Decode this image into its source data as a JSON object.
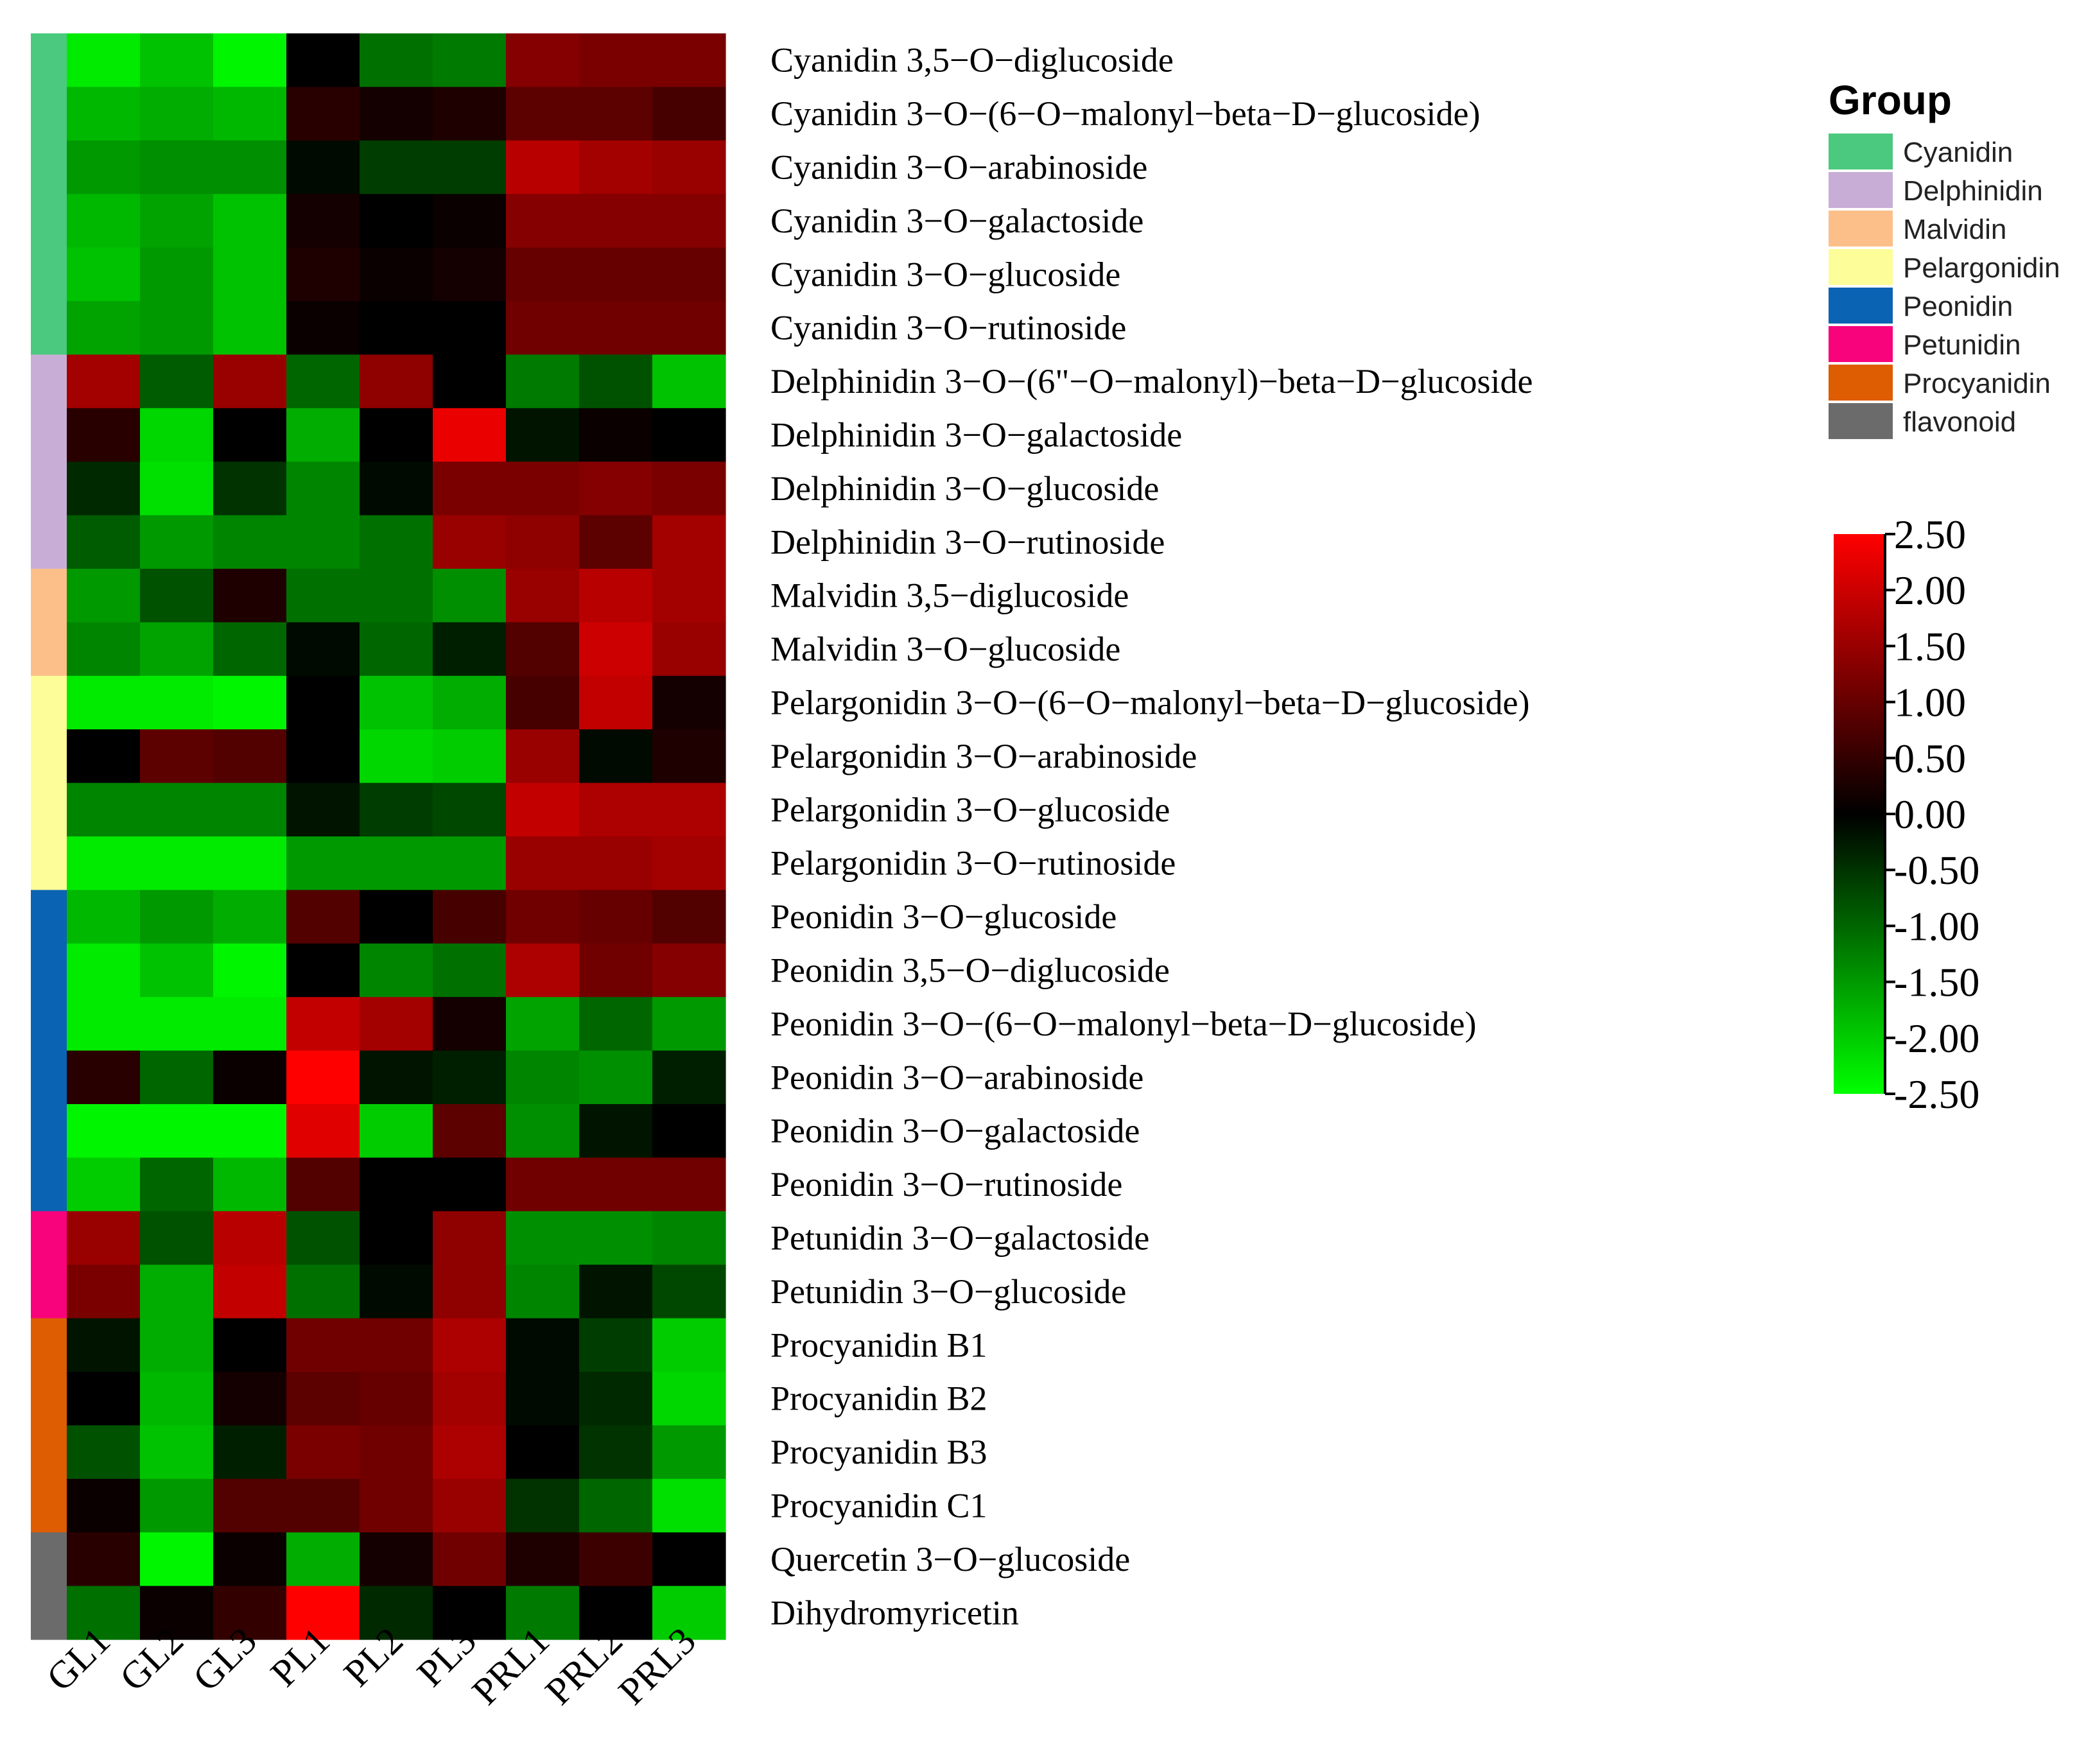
{
  "chart_data": {
    "type": "heatmap",
    "columns": [
      "GL1",
      "GL2",
      "GL3",
      "PL1",
      "PL2",
      "PL3",
      "PRL1",
      "PRL2",
      "PRL3"
    ],
    "rows": [
      {
        "label": "Cyanidin 3,5−O−diglucoside",
        "group": "Cyanidin",
        "values": [
          -2.3,
          -1.9,
          -2.4,
          0.0,
          -1.1,
          -1.2,
          1.3,
          1.2,
          1.2
        ]
      },
      {
        "label": "Cyanidin 3−O−(6−O−malonyl−beta−D−glucoside)",
        "group": "Cyanidin",
        "values": [
          -1.8,
          -1.7,
          -1.8,
          0.4,
          0.2,
          0.3,
          0.9,
          0.9,
          0.7
        ]
      },
      {
        "label": "Cyanidin 3−O−arabinoside",
        "group": "Cyanidin",
        "values": [
          -1.5,
          -1.4,
          -1.4,
          -0.1,
          -0.6,
          -0.6,
          1.8,
          1.6,
          1.5
        ]
      },
      {
        "label": "Cyanidin 3−O−galactoside",
        "group": "Cyanidin",
        "values": [
          -1.8,
          -1.6,
          -1.9,
          0.2,
          0.0,
          0.1,
          1.3,
          1.3,
          1.3
        ]
      },
      {
        "label": "Cyanidin 3−O−glucoside",
        "group": "Cyanidin",
        "values": [
          -1.9,
          -1.5,
          -1.9,
          0.3,
          0.1,
          0.2,
          1.0,
          1.0,
          1.0
        ]
      },
      {
        "label": "Cyanidin 3−O−rutinoside",
        "group": "Cyanidin",
        "values": [
          -1.6,
          -1.5,
          -1.9,
          0.1,
          0.0,
          0.0,
          1.1,
          1.1,
          1.1
        ]
      },
      {
        "label": "Delphinidin 3−O−(6\"−O−malonyl)−beta−D−glucoside",
        "group": "Delphinidin",
        "values": [
          1.6,
          -0.9,
          1.5,
          -1.0,
          1.4,
          0.0,
          -1.2,
          -0.8,
          -1.9
        ]
      },
      {
        "label": "Delphinidin 3−O−galactoside",
        "group": "Delphinidin",
        "values": [
          0.4,
          -2.1,
          0.0,
          -1.7,
          0.0,
          2.3,
          -0.2,
          0.1,
          0.0
        ]
      },
      {
        "label": "Delphinidin 3−O−glucoside",
        "group": "Delphinidin",
        "values": [
          -0.4,
          -2.2,
          -0.5,
          -1.3,
          -0.1,
          1.2,
          1.2,
          1.3,
          1.2
        ]
      },
      {
        "label": "Delphinidin 3−O−rutinoside",
        "group": "Delphinidin",
        "values": [
          -0.9,
          -1.5,
          -1.3,
          -1.3,
          -1.1,
          1.5,
          1.4,
          0.9,
          1.6
        ]
      },
      {
        "label": "Malvidin 3,5−diglucoside",
        "group": "Malvidin",
        "values": [
          -1.5,
          -0.8,
          0.3,
          -1.1,
          -1.1,
          -1.4,
          1.5,
          1.8,
          1.6
        ]
      },
      {
        "label": "Malvidin 3−O−glucoside",
        "group": "Malvidin",
        "values": [
          -1.3,
          -1.6,
          -1.0,
          -0.1,
          -1.0,
          -0.3,
          0.8,
          2.0,
          1.5
        ]
      },
      {
        "label": "Pelargonidin 3−O−(6−O−malonyl−beta−D−glucoside)",
        "group": "Pelargonidin",
        "values": [
          -2.3,
          -2.3,
          -2.4,
          0.0,
          -1.9,
          -1.7,
          0.7,
          1.9,
          0.2
        ]
      },
      {
        "label": "Pelargonidin 3−O−arabinoside",
        "group": "Pelargonidin",
        "values": [
          0.0,
          0.9,
          0.8,
          0.0,
          -2.1,
          -2.0,
          1.5,
          -0.1,
          0.3
        ]
      },
      {
        "label": "Pelargonidin 3−O−glucoside",
        "group": "Pelargonidin",
        "values": [
          -1.3,
          -1.3,
          -1.3,
          -0.2,
          -0.6,
          -0.7,
          1.9,
          1.7,
          1.7
        ]
      },
      {
        "label": "Pelargonidin 3−O−rutinoside",
        "group": "Pelargonidin",
        "values": [
          -2.3,
          -2.3,
          -2.3,
          -1.5,
          -1.5,
          -1.5,
          1.5,
          1.5,
          1.6
        ]
      },
      {
        "label": "Peonidin  3−O−glucoside",
        "group": "Peonidin",
        "values": [
          -1.8,
          -1.5,
          -1.7,
          0.8,
          0.0,
          0.7,
          1.1,
          1.0,
          0.8
        ]
      },
      {
        "label": "Peonidin 3,5−O−diglucoside",
        "group": "Peonidin",
        "values": [
          -2.3,
          -1.9,
          -2.4,
          0.0,
          -1.3,
          -1.1,
          1.7,
          1.1,
          1.3
        ]
      },
      {
        "label": "Peonidin 3−O−(6−O−malonyl−beta−D−glucoside)",
        "group": "Peonidin",
        "values": [
          -2.3,
          -2.3,
          -2.3,
          1.9,
          1.6,
          0.2,
          -1.6,
          -1.0,
          -1.5
        ]
      },
      {
        "label": "Peonidin 3−O−arabinoside",
        "group": "Peonidin",
        "values": [
          0.4,
          -1.0,
          0.1,
          2.5,
          -0.2,
          -0.3,
          -1.3,
          -1.4,
          -0.3
        ]
      },
      {
        "label": "Peonidin 3−O−galactoside",
        "group": "Peonidin",
        "values": [
          -2.4,
          -2.4,
          -2.4,
          2.2,
          -2.0,
          0.9,
          -1.4,
          -0.2,
          0.0
        ]
      },
      {
        "label": "Peonidin 3−O−rutinoside",
        "group": "Peonidin",
        "values": [
          -2.0,
          -1.0,
          -1.8,
          0.8,
          0.0,
          0.0,
          1.1,
          1.1,
          1.1
        ]
      },
      {
        "label": "Petunidin 3−O−galactoside",
        "group": "Petunidin",
        "values": [
          1.5,
          -0.8,
          1.8,
          -0.8,
          0.0,
          1.4,
          -1.4,
          -1.4,
          -1.3
        ]
      },
      {
        "label": "Petunidin 3−O−glucoside",
        "group": "Petunidin",
        "values": [
          1.2,
          -1.7,
          1.9,
          -1.1,
          -0.1,
          1.4,
          -1.3,
          -0.2,
          -0.7
        ]
      },
      {
        "label": "Procyanidin B1",
        "group": "Procyanidin",
        "values": [
          -0.2,
          -1.7,
          0.0,
          1.1,
          1.1,
          1.7,
          -0.1,
          -0.6,
          -2.0
        ]
      },
      {
        "label": "Procyanidin B2",
        "group": "Procyanidin",
        "values": [
          0.0,
          -1.8,
          0.2,
          0.9,
          1.0,
          1.6,
          -0.1,
          -0.4,
          -2.1
        ]
      },
      {
        "label": "Procyanidin B3",
        "group": "Procyanidin",
        "values": [
          -0.8,
          -1.9,
          -0.3,
          1.2,
          1.1,
          1.7,
          0.0,
          -0.5,
          -1.5
        ]
      },
      {
        "label": "Procyanidin C1",
        "group": "Procyanidin",
        "values": [
          0.1,
          -1.5,
          0.8,
          0.8,
          1.1,
          1.5,
          -0.5,
          -1.0,
          -2.2
        ]
      },
      {
        "label": "Quercetin 3−O−glucoside",
        "group": "flavonoid",
        "values": [
          0.4,
          -2.4,
          0.1,
          -1.7,
          0.2,
          1.1,
          0.3,
          0.6,
          0.0
        ]
      },
      {
        "label": "Dihydromyricetin",
        "group": "flavonoid",
        "values": [
          -1.1,
          0.1,
          0.5,
          2.5,
          -0.4,
          0.0,
          -1.2,
          0.0,
          -2.0
        ]
      }
    ],
    "color_scale": {
      "min": -2.5,
      "max": 2.5,
      "low_color": "#00ff00",
      "mid_color": "#000000",
      "high_color": "#ff0000",
      "ticks": [
        "2.50",
        "2.00",
        "1.50",
        "1.00",
        "0.50",
        "0.00",
        "-0.50",
        "-1.00",
        "-1.50",
        "-2.00",
        "-2.50"
      ]
    },
    "legend": {
      "title": "Group",
      "groups": [
        {
          "name": "Cyanidin",
          "color": "#4bc97e"
        },
        {
          "name": "Delphinidin",
          "color": "#c8aed6"
        },
        {
          "name": "Malvidin",
          "color": "#fdbf8a"
        },
        {
          "name": "Pelargonidin",
          "color": "#fdfd9a"
        },
        {
          "name": "Peonidin",
          "color": "#0b63b3"
        },
        {
          "name": "Petunidin",
          "color": "#f9037c"
        },
        {
          "name": "Procyanidin",
          "color": "#de5c02"
        },
        {
          "name": "flavonoid",
          "color": "#6b6b6b"
        }
      ]
    }
  }
}
